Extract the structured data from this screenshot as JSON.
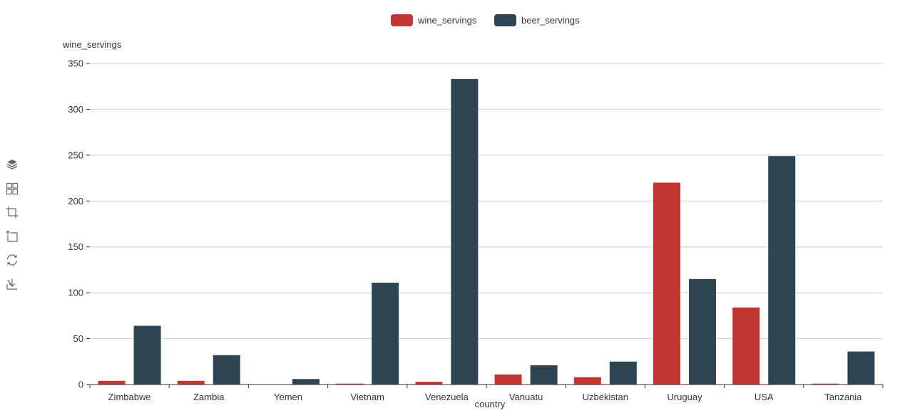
{
  "colors": {
    "wine": "#c23531",
    "beer": "#2f4554",
    "axis": "#333333",
    "grid": "#cccccc",
    "icon": "#666666"
  },
  "toolbox": [
    {
      "name": "stack-icon"
    },
    {
      "name": "tiled-icon"
    },
    {
      "name": "data-zoom-icon"
    },
    {
      "name": "zoom-reset-icon"
    },
    {
      "name": "restore-icon"
    },
    {
      "name": "save-as-image-icon"
    }
  ],
  "chart_data": {
    "type": "bar",
    "title": "",
    "xlabel": "country",
    "ylabel": "wine_servings",
    "categories": [
      "Zimbabwe",
      "Zambia",
      "Yemen",
      "Vietnam",
      "Venezuela",
      "Vanuatu",
      "Uzbekistan",
      "Uruguay",
      "USA",
      "Tanzania"
    ],
    "series": [
      {
        "name": "wine_servings",
        "values": [
          4,
          4,
          0,
          1,
          3,
          11,
          8,
          220,
          84,
          1
        ]
      },
      {
        "name": "beer_servings",
        "values": [
          64,
          32,
          6,
          111,
          333,
          21,
          25,
          115,
          249,
          36
        ]
      }
    ],
    "ylim": [
      0,
      350
    ],
    "yticks": [
      0,
      50,
      100,
      150,
      200,
      250,
      300,
      350
    ],
    "grid": true,
    "legend": "top-center"
  }
}
